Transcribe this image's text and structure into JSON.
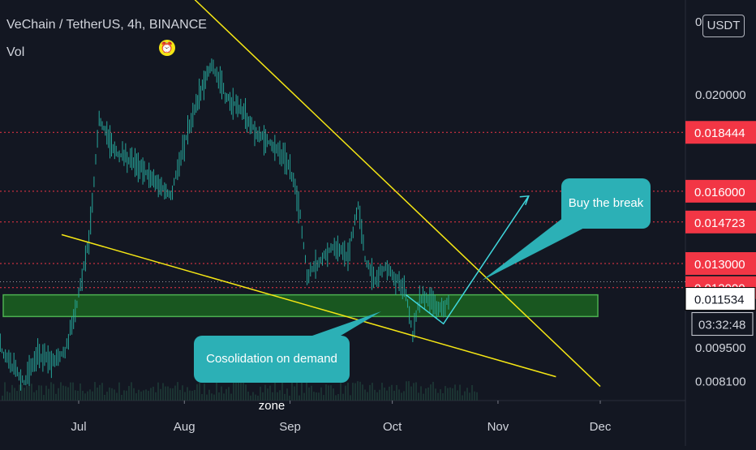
{
  "header": {
    "title": "VeChain / TetherUS, 4h, BINANCE",
    "volume_label": "Vol",
    "alarm_icon": "alarm-clock-icon",
    "currency_button": "USDT"
  },
  "colors": {
    "background": "#131722",
    "candle": "#26a69a",
    "trendline": "#f5e614",
    "resistance_line": "#f23645",
    "demand_zone": "#1b5e20",
    "demand_zone_border": "#4caf50",
    "arrow": "#3fd6dc",
    "callout": "#2cb0b6",
    "current_price_box": "#ffffff",
    "resistance_box": "#f23645"
  },
  "chart_data": {
    "type": "candlestick",
    "symbol": "VeChain / TetherUS",
    "interval": "4h",
    "exchange": "BINANCE",
    "x_tick_labels": [
      "Jul",
      "Aug",
      "Sep",
      "Oct",
      "Nov",
      "Dec"
    ],
    "y_tick_labels": [
      "0.020000",
      "0.009500",
      "0.008100"
    ],
    "ylim": [
      0.0078,
      0.0245
    ],
    "resistance_levels": [
      {
        "price": 0.018444,
        "label": "0.018444"
      },
      {
        "price": 0.016,
        "label": "0.016000"
      },
      {
        "price": 0.014723,
        "label": "0.014723"
      },
      {
        "price": 0.013,
        "label": "0.013000"
      },
      {
        "price": 0.012,
        "label": "0.012000"
      }
    ],
    "current_price": {
      "price": 0.011534,
      "label": "0.011534"
    },
    "countdown": "03:32:48",
    "demand_zone": {
      "from": 0.0108,
      "to": 0.0117
    },
    "price_path": [
      {
        "date": "2020-06-06",
        "price": 0.008
      },
      {
        "date": "2020-06-08",
        "price": 0.0095
      },
      {
        "date": "2020-06-11",
        "price": 0.0088
      },
      {
        "date": "2020-06-15",
        "price": 0.0081
      },
      {
        "date": "2020-06-19",
        "price": 0.0092
      },
      {
        "date": "2020-06-23",
        "price": 0.0089
      },
      {
        "date": "2020-06-27",
        "price": 0.0094
      },
      {
        "date": "2020-06-30",
        "price": 0.011
      },
      {
        "date": "2020-07-04",
        "price": 0.014
      },
      {
        "date": "2020-07-07",
        "price": 0.019
      },
      {
        "date": "2020-07-12",
        "price": 0.0176
      },
      {
        "date": "2020-07-18",
        "price": 0.0171
      },
      {
        "date": "2020-07-23",
        "price": 0.0165
      },
      {
        "date": "2020-07-28",
        "price": 0.0158
      },
      {
        "date": "2020-07-31",
        "price": 0.0175
      },
      {
        "date": "2020-08-04",
        "price": 0.0195
      },
      {
        "date": "2020-08-09",
        "price": 0.0213
      },
      {
        "date": "2020-08-13",
        "price": 0.02
      },
      {
        "date": "2020-08-18",
        "price": 0.0193
      },
      {
        "date": "2020-08-23",
        "price": 0.0183
      },
      {
        "date": "2020-08-28",
        "price": 0.0178
      },
      {
        "date": "2020-09-01",
        "price": 0.017
      },
      {
        "date": "2020-09-04",
        "price": 0.015
      },
      {
        "date": "2020-09-06",
        "price": 0.0125
      },
      {
        "date": "2020-09-10",
        "price": 0.0131
      },
      {
        "date": "2020-09-14",
        "price": 0.0138
      },
      {
        "date": "2020-09-18",
        "price": 0.0133
      },
      {
        "date": "2020-09-21",
        "price": 0.0155
      },
      {
        "date": "2020-09-23",
        "price": 0.0132
      },
      {
        "date": "2020-09-26",
        "price": 0.0123
      },
      {
        "date": "2020-09-29",
        "price": 0.0129
      },
      {
        "date": "2020-10-02",
        "price": 0.0124
      },
      {
        "date": "2020-10-05",
        "price": 0.0117
      },
      {
        "date": "2020-10-07",
        "price": 0.0101
      },
      {
        "date": "2020-10-09",
        "price": 0.0116
      },
      {
        "date": "2020-10-12",
        "price": 0.0115
      },
      {
        "date": "2020-10-15",
        "price": 0.0111
      },
      {
        "date": "2020-10-17",
        "price": 0.0114
      },
      {
        "date": "2020-10-18",
        "price": 0.01153
      }
    ],
    "trendlines": [
      {
        "name": "upper-trendline",
        "points": [
          {
            "date": "2020-07-31",
            "price": 0.0245
          },
          {
            "date": "2020-12-01",
            "price": 0.0079
          }
        ]
      },
      {
        "name": "lower-trendline",
        "points": [
          {
            "date": "2020-06-26",
            "price": 0.0142
          },
          {
            "date": "2020-11-18",
            "price": 0.0083
          }
        ]
      }
    ],
    "projection_arrow": [
      {
        "date": "2020-10-05",
        "price": 0.0117
      },
      {
        "date": "2020-10-16",
        "price": 0.0105
      },
      {
        "date": "2020-11-10",
        "price": 0.0158
      }
    ],
    "annotations": [
      {
        "name": "buy-callout",
        "text": "Buy the break"
      },
      {
        "name": "consolidation-callout",
        "text": "Cosolidation on demand zone"
      }
    ]
  }
}
